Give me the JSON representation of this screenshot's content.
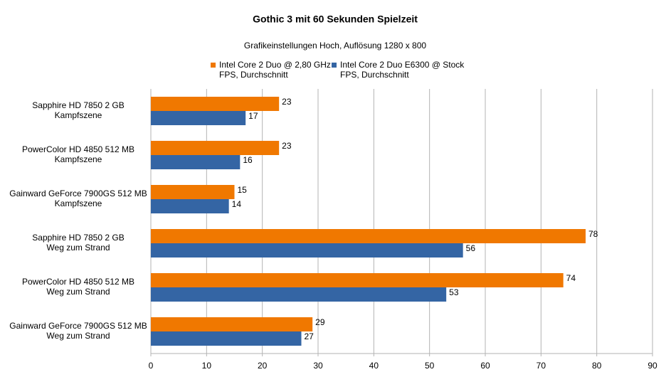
{
  "chart_data": {
    "type": "hbar",
    "title": "Gothic 3 mit 60 Sekunden Spielzeit",
    "subtitle": "Grafikeinstellungen Hoch, Auflösung 1280 x 800",
    "categories": [
      [
        "Sapphire HD 7850 2 GB",
        "Kampfszene"
      ],
      [
        "PowerColor HD 4850 512 MB",
        "Kampfszene"
      ],
      [
        "Gainward GeForce 7900GS 512 MB",
        "Kampfszene"
      ],
      [
        "Sapphire HD 7850 2 GB",
        "Weg zum Strand"
      ],
      [
        "PowerColor HD 4850 512 MB",
        "Weg zum Strand"
      ],
      [
        "Gainward GeForce 7900GS 512 MB",
        "Weg zum Strand"
      ]
    ],
    "series": [
      {
        "name": [
          "Intel Core 2 Duo @ 2,80 GHz",
          "FPS, Durchschnitt"
        ],
        "color": "#f07800",
        "values": [
          23,
          23,
          15,
          78,
          74,
          29
        ]
      },
      {
        "name": [
          "Intel Core 2 Duo E6300 @ Stock",
          "FPS, Durchschnitt"
        ],
        "color": "#3465a4",
        "values": [
          17,
          16,
          14,
          56,
          53,
          27
        ]
      }
    ],
    "xlim": [
      0,
      90
    ],
    "xticks": [
      0,
      10,
      20,
      30,
      40,
      50,
      60,
      70,
      80,
      90
    ],
    "grid": true,
    "legend": "top"
  }
}
